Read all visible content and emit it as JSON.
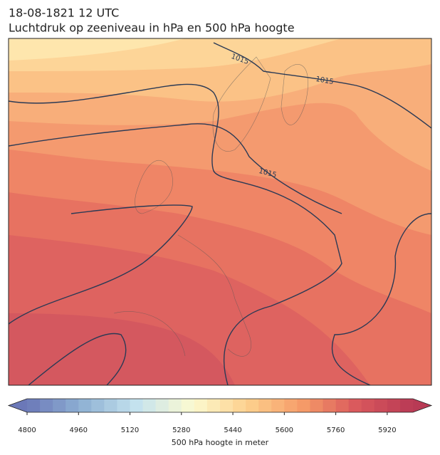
{
  "header": {
    "title": "18-08-1821 12 UTC",
    "subtitle": "Luchtdruk op zeeniveau in hPa en 500 hPa hoogte"
  },
  "map": {
    "contour_labels": [
      "1015",
      "1015",
      "1015"
    ]
  },
  "colorbar": {
    "label": "500 hPa hoogte in meter",
    "lim": [
      4800,
      6000
    ],
    "step": 40,
    "ticks": [
      4800,
      4960,
      5120,
      5280,
      5440,
      5600,
      5760,
      5920
    ],
    "colors": [
      "#6b78b8",
      "#8fb1d4",
      "#c5e3ee",
      "#fcfad0",
      "#fdd08d",
      "#f59b68",
      "#d9575c",
      "#b83a55"
    ]
  }
}
